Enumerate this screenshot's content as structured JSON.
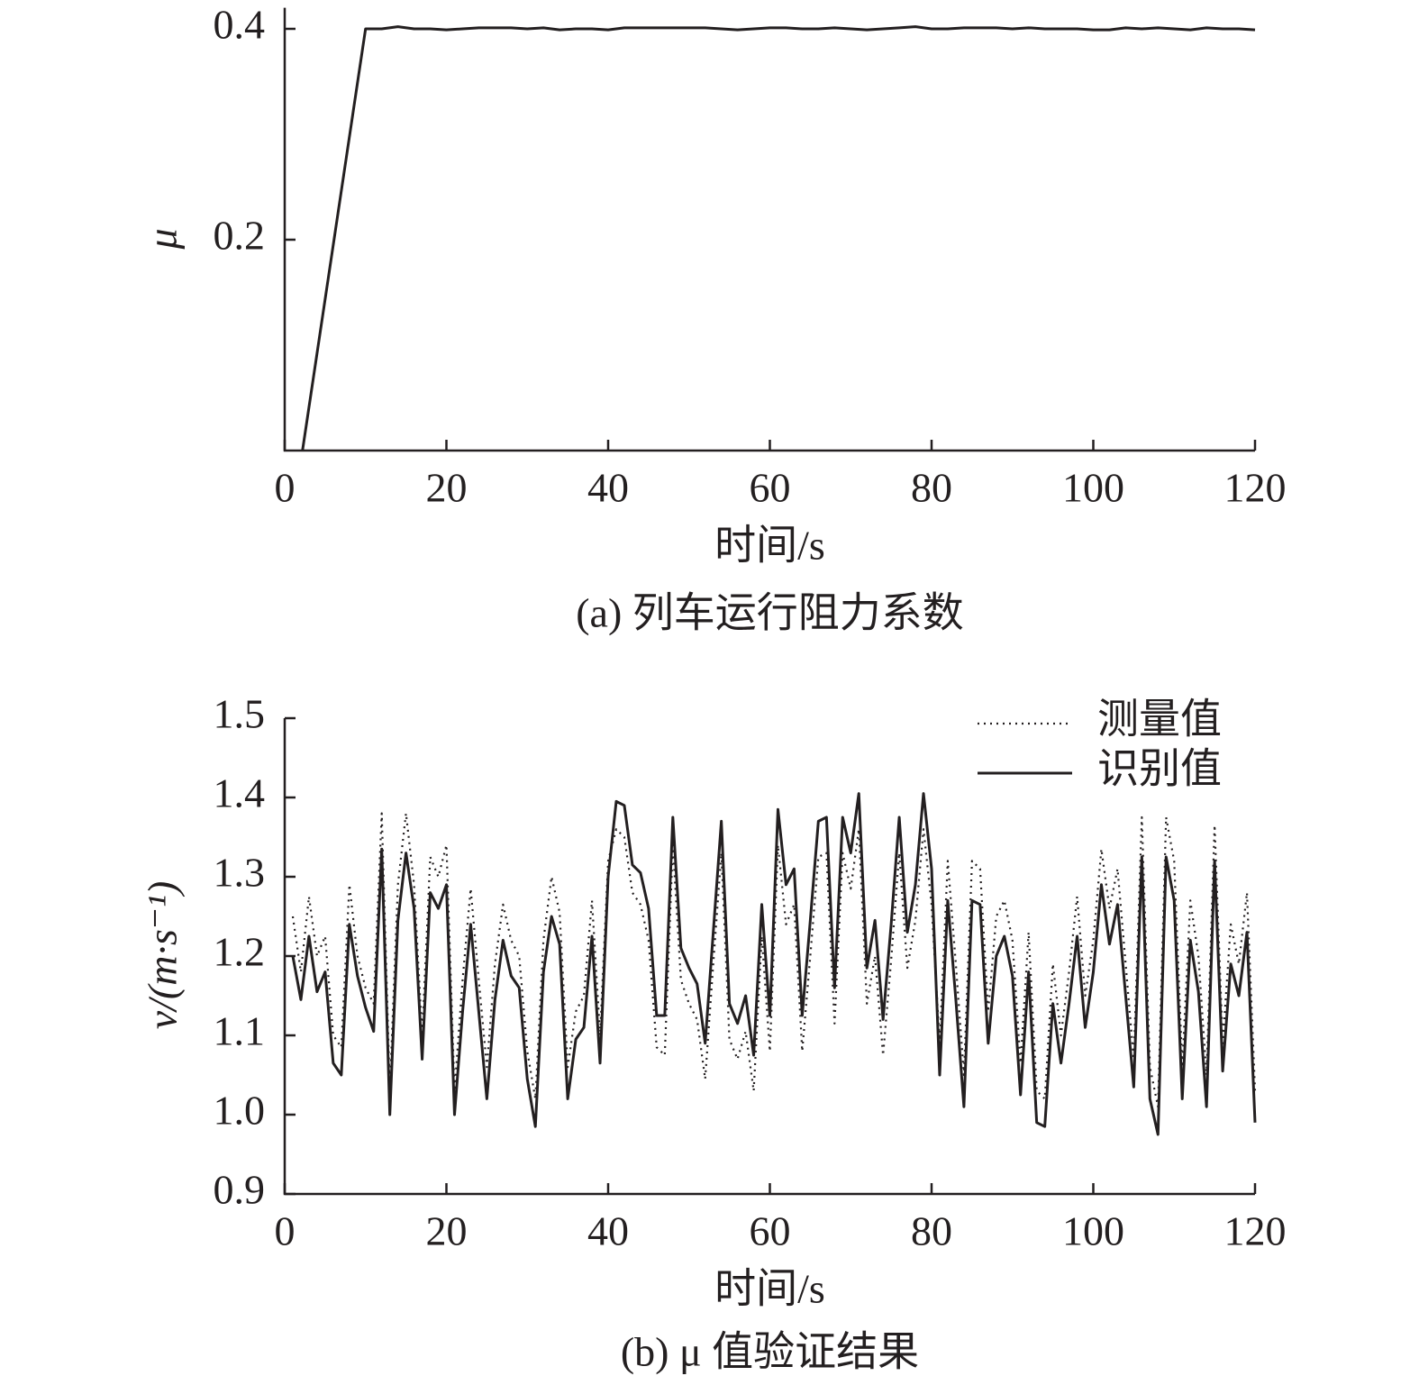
{
  "chart_data": [
    {
      "type": "line",
      "xlabel": "时间/s",
      "ylabel": "μ",
      "caption": "(a) 列车运行阻力系数",
      "xlim": [
        0,
        120
      ],
      "ylim": [
        0,
        0.42
      ],
      "xticks": [
        0,
        20,
        40,
        60,
        80,
        100,
        120
      ],
      "yticks": [
        0.2,
        0.4
      ],
      "x": [
        2.2,
        10,
        12,
        14,
        16,
        18,
        20,
        22,
        24,
        26,
        28,
        30,
        32,
        34,
        36,
        38,
        40,
        42,
        44,
        46,
        48,
        50,
        52,
        54,
        56,
        58,
        60,
        62,
        64,
        66,
        68,
        70,
        72,
        74,
        76,
        78,
        80,
        82,
        84,
        86,
        88,
        90,
        92,
        94,
        96,
        98,
        100,
        102,
        104,
        106,
        108,
        110,
        112,
        114,
        116,
        118,
        120
      ],
      "series": [
        {
          "color": "#231f20",
          "style": "solid",
          "values": [
            0,
            0.4,
            0.4,
            0.402,
            0.4,
            0.4,
            0.399,
            0.4,
            0.401,
            0.401,
            0.401,
            0.4,
            0.401,
            0.399,
            0.4,
            0.4,
            0.399,
            0.401,
            0.401,
            0.401,
            0.401,
            0.401,
            0.401,
            0.4,
            0.399,
            0.4,
            0.401,
            0.401,
            0.4,
            0.4,
            0.401,
            0.4,
            0.399,
            0.4,
            0.401,
            0.402,
            0.4,
            0.4,
            0.401,
            0.401,
            0.401,
            0.4,
            0.401,
            0.4,
            0.4,
            0.4,
            0.399,
            0.399,
            0.401,
            0.4,
            0.401,
            0.4,
            0.399,
            0.401,
            0.4,
            0.4,
            0.399
          ]
        }
      ]
    },
    {
      "type": "line",
      "xlabel": "时间/s",
      "ylabel": "v/(m·s⁻¹)",
      "caption": "(b) μ 值验证结果",
      "xlim": [
        0,
        120
      ],
      "ylim": [
        0.9,
        1.5
      ],
      "xticks": [
        0,
        20,
        40,
        60,
        80,
        100,
        120
      ],
      "yticks": [
        0.9,
        {
          "value": 1,
          "label": "1.0"
        },
        1.1,
        1.2,
        1.3,
        1.4,
        1.5
      ],
      "legend": "upper right",
      "x": [
        1,
        2,
        3,
        4,
        5,
        6,
        7,
        8,
        9,
        10,
        11,
        12,
        13,
        14,
        15,
        16,
        17,
        18,
        19,
        20,
        21,
        22,
        23,
        24,
        25,
        26,
        27,
        28,
        29,
        30,
        31,
        32,
        33,
        34,
        35,
        36,
        37,
        38,
        39,
        40,
        41,
        42,
        43,
        44,
        45,
        46,
        47,
        48,
        49,
        50,
        51,
        52,
        53,
        54,
        55,
        56,
        57,
        58,
        59,
        60,
        61,
        62,
        63,
        64,
        65,
        66,
        67,
        68,
        69,
        70,
        71,
        72,
        73,
        74,
        75,
        76,
        77,
        78,
        79,
        80,
        81,
        82,
        83,
        84,
        85,
        86,
        87,
        88,
        89,
        90,
        91,
        92,
        93,
        94,
        95,
        96,
        97,
        98,
        99,
        100,
        101,
        102,
        103,
        104,
        105,
        106,
        107,
        108,
        109,
        110,
        111,
        112,
        113,
        114,
        115,
        116,
        117,
        118,
        119,
        120
      ],
      "series": [
        {
          "name": "测量值",
          "color": "#231f20",
          "style": "dotted",
          "values": [
            1.25,
            1.18,
            1.275,
            1.2,
            1.225,
            1.1,
            1.085,
            1.29,
            1.2,
            1.16,
            1.14,
            1.38,
            1.03,
            1.29,
            1.38,
            1.29,
            1.1,
            1.325,
            1.3,
            1.34,
            1.03,
            1.17,
            1.285,
            1.17,
            1.06,
            1.19,
            1.265,
            1.22,
            1.2,
            1.08,
            1.02,
            1.22,
            1.3,
            1.255,
            1.06,
            1.13,
            1.15,
            1.27,
            1.1,
            1.32,
            1.36,
            1.35,
            1.28,
            1.265,
            1.22,
            1.085,
            1.075,
            1.34,
            1.17,
            1.14,
            1.12,
            1.045,
            1.19,
            1.33,
            1.095,
            1.07,
            1.105,
            1.03,
            1.225,
            1.08,
            1.34,
            1.24,
            1.265,
            1.08,
            1.2,
            1.325,
            1.33,
            1.115,
            1.33,
            1.285,
            1.36,
            1.14,
            1.2,
            1.075,
            1.195,
            1.33,
            1.185,
            1.245,
            1.36,
            1.265,
            1.09,
            1.32,
            1.19,
            1.05,
            1.32,
            1.31,
            1.13,
            1.25,
            1.27,
            1.22,
            1.065,
            1.23,
            1.03,
            1.02,
            1.19,
            1.1,
            1.18,
            1.275,
            1.15,
            1.22,
            1.335,
            1.26,
            1.31,
            1.19,
            1.07,
            1.375,
            1.06,
            1.01,
            1.375,
            1.32,
            1.06,
            1.27,
            1.2,
            1.05,
            1.365,
            1.09,
            1.24,
            1.19,
            1.28,
            1.03
          ]
        },
        {
          "name": "识别值",
          "color": "#231f20",
          "style": "solid",
          "values": [
            1.2,
            1.145,
            1.225,
            1.155,
            1.18,
            1.065,
            1.05,
            1.24,
            1.175,
            1.135,
            1.105,
            1.335,
            1.0,
            1.245,
            1.33,
            1.26,
            1.07,
            1.28,
            1.26,
            1.29,
            1.0,
            1.13,
            1.24,
            1.13,
            1.02,
            1.145,
            1.22,
            1.175,
            1.16,
            1.045,
            0.985,
            1.18,
            1.25,
            1.215,
            1.02,
            1.095,
            1.11,
            1.225,
            1.065,
            1.3,
            1.395,
            1.39,
            1.315,
            1.305,
            1.26,
            1.125,
            1.125,
            1.375,
            1.21,
            1.185,
            1.165,
            1.09,
            1.23,
            1.37,
            1.14,
            1.115,
            1.15,
            1.075,
            1.265,
            1.125,
            1.385,
            1.29,
            1.31,
            1.125,
            1.245,
            1.37,
            1.375,
            1.16,
            1.375,
            1.33,
            1.405,
            1.185,
            1.245,
            1.12,
            1.24,
            1.375,
            1.23,
            1.29,
            1.405,
            1.31,
            1.05,
            1.27,
            1.145,
            1.01,
            1.27,
            1.265,
            1.09,
            1.2,
            1.225,
            1.175,
            1.025,
            1.18,
            0.99,
            0.985,
            1.14,
            1.065,
            1.14,
            1.225,
            1.11,
            1.18,
            1.29,
            1.215,
            1.265,
            1.15,
            1.035,
            1.325,
            1.02,
            0.975,
            1.325,
            1.27,
            1.02,
            1.22,
            1.155,
            1.01,
            1.32,
            1.055,
            1.19,
            1.15,
            1.23,
            0.99
          ]
        }
      ]
    }
  ]
}
